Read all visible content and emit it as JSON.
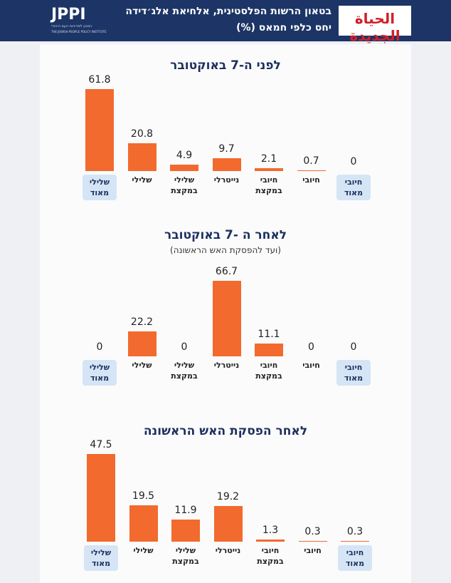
{
  "header": {
    "logo": {
      "name": "JPPI",
      "hebrew": "המכון למדיניות העם היהודי",
      "english": "THE JEWISH PEOPLE POLICY INSTITUTE"
    },
    "source_logo": "الحياة الجديدة",
    "title": "בטאון הרשות הפלסטינית, אלחיאת אלג׳דידה",
    "subtitle": "יחס כלפי חמאס (%)"
  },
  "chart_data": [
    {
      "type": "bar",
      "title": "לפני ה-7 באוקטובר",
      "color": "#f26a2e",
      "categories": [
        "שלילי מאוד",
        "שלילי",
        "שלילי במקצת",
        "נייטרלי",
        "חיובי במקצת",
        "חיובי",
        "חיובי מאוד"
      ],
      "values": [
        61.8,
        20.8,
        4.9,
        9.7,
        2.1,
        0.7,
        0
      ],
      "ylim": [
        0,
        70
      ]
    },
    {
      "type": "bar",
      "title": "לאחר ה -7 באוקטובר",
      "subtitle": "(ועד להפסקת האש הראשונה)",
      "color": "#f26a2e",
      "categories": [
        "שלילי מאוד",
        "שלילי",
        "שלילי במקצת",
        "נייטרלי",
        "חיובי במקצת",
        "חיובי",
        "חיובי מאוד"
      ],
      "values": [
        0,
        22.2,
        0,
        66.7,
        11.1,
        0,
        0
      ],
      "ylim": [
        0,
        82
      ]
    },
    {
      "type": "bar",
      "title": "לאחר הפסקת האש הראשונה",
      "color": "#f26a2e",
      "categories": [
        "שלילי מאוד",
        "שלילי",
        "שלילי במקצת",
        "נייטרלי",
        "חיובי במקצת",
        "חיובי",
        "חיובי מאוד"
      ],
      "values": [
        47.5,
        19.5,
        11.9,
        19.2,
        1.3,
        0.3,
        0.3
      ],
      "ylim": [
        0,
        50
      ]
    }
  ]
}
